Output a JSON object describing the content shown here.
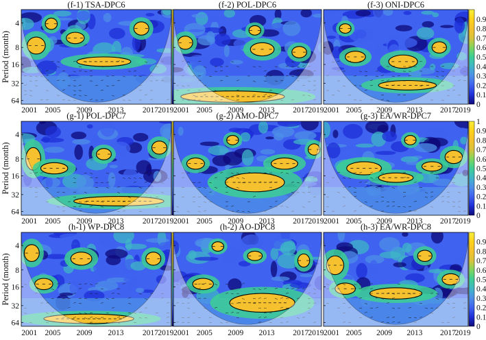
{
  "figure": {
    "ylabel": "Period (month)",
    "colors": {
      "colormap": [
        "#0d0a7a",
        "#1e2fd8",
        "#3f62f0",
        "#4d8fe8",
        "#3fb6c7",
        "#3ccf94",
        "#7fd65e",
        "#d9c23a",
        "#f5c12e",
        "#ffd21a",
        "#f6ef3a"
      ],
      "coi_overlay": "#ffffff",
      "contour": "#000000",
      "arrow": "#1a1a1a"
    }
  },
  "chart_data": [
    {
      "type": "heatmap",
      "title": "(f-1) TSA-DPC6",
      "x_ticks": [
        "2001",
        "2005",
        "2009",
        "2013",
        "2017",
        "2019"
      ],
      "y_ticks": [
        "4",
        "8",
        "16",
        "32",
        "64"
      ],
      "colorbar_ticks": [
        "0.9",
        "0.8",
        "0.7",
        "0.6",
        "0.5",
        "0.4",
        "0.3",
        "0.2",
        "0.1",
        "0"
      ],
      "value_range": [
        0,
        1
      ],
      "y_scale": "log2"
    },
    {
      "type": "heatmap",
      "title": "(f-2) POL-DPC6",
      "x_ticks": [
        "2001",
        "2005",
        "2009",
        "2013",
        "2017",
        "2019"
      ],
      "y_ticks": [
        "4",
        "8",
        "16",
        "32",
        "64"
      ],
      "colorbar_ticks": [
        "0.9",
        "0.8",
        "0.7",
        "0.6",
        "0.5",
        "0.4",
        "0.3",
        "0.2",
        "0.1",
        "0"
      ],
      "value_range": [
        0,
        1
      ],
      "y_scale": "log2"
    },
    {
      "type": "heatmap",
      "title": "(f-3) ONI-DPC6",
      "x_ticks": [
        "2001",
        "2005",
        "2009",
        "2013",
        "2017",
        "2019"
      ],
      "y_ticks": [
        "4",
        "8",
        "16",
        "32",
        "64"
      ],
      "colorbar_ticks": [
        "0.9",
        "0.8",
        "0.7",
        "0.6",
        "0.5",
        "0.4",
        "0.3",
        "0.2",
        "0.1",
        "0"
      ],
      "value_range": [
        0,
        1
      ],
      "y_scale": "log2"
    },
    {
      "type": "heatmap",
      "title": "(g-1) POL-DPC7",
      "x_ticks": [
        "2001",
        "2005",
        "2009",
        "2013",
        "2017",
        "2019"
      ],
      "y_ticks": [
        "4",
        "8",
        "16",
        "32",
        "64"
      ],
      "colorbar_ticks": [
        "1",
        "0.9",
        "0.8",
        "0.7",
        "0.6",
        "0.5",
        "0.4",
        "0.3",
        "0.2",
        "0.1",
        "0"
      ],
      "value_range": [
        0,
        1
      ],
      "y_scale": "log2"
    },
    {
      "type": "heatmap",
      "title": "(g-2) AMO-DPC7",
      "x_ticks": [
        "2001",
        "2005",
        "2009",
        "2013",
        "2017",
        "2019"
      ],
      "y_ticks": [
        "4",
        "8",
        "16",
        "32",
        "64"
      ],
      "colorbar_ticks": [
        "1",
        "0.9",
        "0.8",
        "0.7",
        "0.6",
        "0.5",
        "0.4",
        "0.3",
        "0.2",
        "0.1",
        "0"
      ],
      "value_range": [
        0,
        1
      ],
      "y_scale": "log2"
    },
    {
      "type": "heatmap",
      "title": "(g-3) EA/WR-DPC7",
      "x_ticks": [
        "2001",
        "2005",
        "2009",
        "2013",
        "2017",
        "2019"
      ],
      "y_ticks": [
        "4",
        "8",
        "16",
        "32",
        "64"
      ],
      "colorbar_ticks": [
        "1",
        "0.9",
        "0.8",
        "0.7",
        "0.6",
        "0.5",
        "0.4",
        "0.3",
        "0.2",
        "0.1",
        "0"
      ],
      "value_range": [
        0,
        1
      ],
      "y_scale": "log2"
    },
    {
      "type": "heatmap",
      "title": "(h-1) WP-DPC8",
      "x_ticks": [
        "2001",
        "2005",
        "2009",
        "2013",
        "2017",
        "2019"
      ],
      "y_ticks": [
        "4",
        "8",
        "16",
        "32",
        "64"
      ],
      "colorbar_ticks": [
        "0.9",
        "0.8",
        "0.7",
        "0.6",
        "0.5",
        "0.4",
        "0.3",
        "0.2",
        "0.1",
        "0"
      ],
      "value_range": [
        0,
        1
      ],
      "y_scale": "log2"
    },
    {
      "type": "heatmap",
      "title": "(h-2) AO-DPC8",
      "x_ticks": [
        "2001",
        "2005",
        "2009",
        "2013",
        "2017",
        "2019"
      ],
      "y_ticks": [
        "4",
        "8",
        "16",
        "32",
        "64"
      ],
      "colorbar_ticks": [
        "0.9",
        "0.8",
        "0.7",
        "0.6",
        "0.5",
        "0.4",
        "0.3",
        "0.2",
        "0.1",
        "0"
      ],
      "value_range": [
        0,
        1
      ],
      "y_scale": "log2"
    },
    {
      "type": "heatmap",
      "title": "(h-3) EA/WR-DPC8",
      "x_ticks": [
        "2001",
        "2005",
        "2009",
        "2013",
        "2017",
        "2019"
      ],
      "y_ticks": [
        "4",
        "8",
        "16",
        "32",
        "64"
      ],
      "colorbar_ticks": [
        "0.9",
        "0.8",
        "0.7",
        "0.6",
        "0.5",
        "0.4",
        "0.3",
        "0.2",
        "0.1",
        "0"
      ],
      "value_range": [
        0,
        1
      ],
      "y_scale": "log2"
    }
  ]
}
